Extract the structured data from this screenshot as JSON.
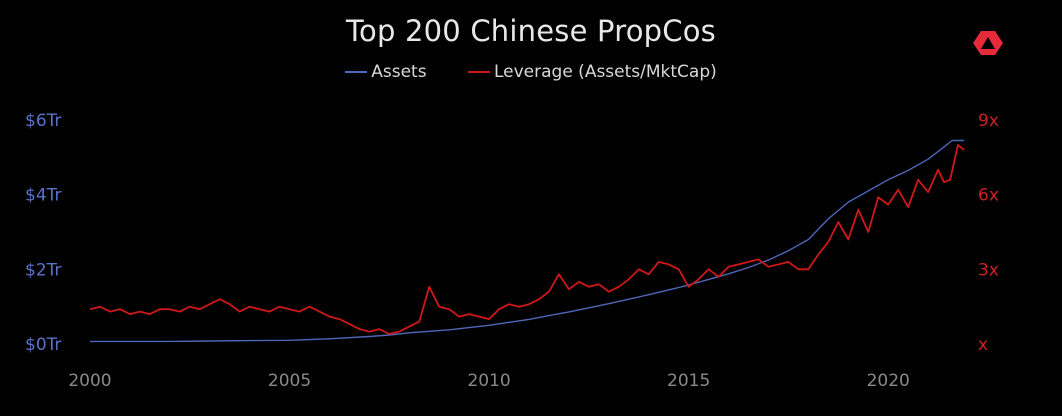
{
  "chart_data": {
    "type": "line",
    "title": "Top 200 Chinese PropCos",
    "legend_position": "top",
    "grid": false,
    "x_ticks": [
      "2000",
      "2005",
      "2010",
      "2015",
      "2020"
    ],
    "y_left_ticks": [
      "$0Tr",
      "$2Tr",
      "$4Tr",
      "$6Tr"
    ],
    "y_right_ticks": [
      "x",
      "3x",
      "6x",
      "9x"
    ],
    "y_left_range": [
      0,
      6
    ],
    "y_right_range": [
      0,
      9
    ],
    "x_range": [
      2000,
      2022.3
    ],
    "series": [
      {
        "name": "Assets",
        "axis": "left",
        "color": "#4f67b8",
        "x": [
          2000,
          2001,
          2002,
          2003,
          2004,
          2005,
          2006,
          2007,
          2007.5,
          2008,
          2008.5,
          2009,
          2009.5,
          2010,
          2010.5,
          2011,
          2011.5,
          2012,
          2012.5,
          2013,
          2013.5,
          2014,
          2014.5,
          2015,
          2015.5,
          2016,
          2016.5,
          2017,
          2017.5,
          2018,
          2018.5,
          2019,
          2019.5,
          2020,
          2020.5,
          2021,
          2021.3,
          2021.6,
          2021.9
        ],
        "values": [
          0.07,
          0.07,
          0.07,
          0.08,
          0.09,
          0.1,
          0.14,
          0.2,
          0.24,
          0.3,
          0.34,
          0.38,
          0.44,
          0.5,
          0.58,
          0.66,
          0.76,
          0.86,
          0.97,
          1.08,
          1.2,
          1.32,
          1.45,
          1.58,
          1.73,
          1.88,
          2.05,
          2.25,
          2.5,
          2.8,
          3.35,
          3.8,
          4.1,
          4.4,
          4.65,
          4.95,
          5.2,
          5.45,
          5.45
        ]
      },
      {
        "name": "Leverage (Assets/MktCap)",
        "axis": "right",
        "color": "#d01818",
        "x": [
          2000,
          2000.25,
          2000.5,
          2000.75,
          2001,
          2001.25,
          2001.5,
          2001.75,
          2002,
          2002.25,
          2002.5,
          2002.75,
          2003,
          2003.25,
          2003.5,
          2003.75,
          2004,
          2004.25,
          2004.5,
          2004.75,
          2005,
          2005.25,
          2005.5,
          2005.75,
          2006,
          2006.25,
          2006.5,
          2006.75,
          2007,
          2007.25,
          2007.5,
          2007.75,
          2008,
          2008.25,
          2008.5,
          2008.75,
          2009,
          2009.25,
          2009.5,
          2009.75,
          2010,
          2010.25,
          2010.5,
          2010.75,
          2011,
          2011.25,
          2011.5,
          2011.75,
          2012,
          2012.25,
          2012.5,
          2012.75,
          2013,
          2013.25,
          2013.5,
          2013.75,
          2014,
          2014.25,
          2014.5,
          2014.75,
          2015,
          2015.25,
          2015.5,
          2015.75,
          2016,
          2016.25,
          2016.5,
          2016.75,
          2017,
          2017.25,
          2017.5,
          2017.75,
          2018,
          2018.25,
          2018.5,
          2018.75,
          2019,
          2019.25,
          2019.5,
          2019.75,
          2020,
          2020.25,
          2020.5,
          2020.75,
          2021,
          2021.25,
          2021.4,
          2021.55,
          2021.75,
          2021.9
        ],
        "values": [
          1.4,
          1.5,
          1.3,
          1.4,
          1.2,
          1.3,
          1.2,
          1.4,
          1.4,
          1.3,
          1.5,
          1.4,
          1.6,
          1.8,
          1.6,
          1.3,
          1.5,
          1.4,
          1.3,
          1.5,
          1.4,
          1.3,
          1.5,
          1.3,
          1.1,
          1.0,
          0.8,
          0.6,
          0.5,
          0.6,
          0.4,
          0.5,
          0.7,
          0.9,
          2.3,
          1.5,
          1.4,
          1.1,
          1.2,
          1.1,
          1.0,
          1.4,
          1.6,
          1.5,
          1.6,
          1.8,
          2.1,
          2.8,
          2.2,
          2.5,
          2.3,
          2.4,
          2.1,
          2.3,
          2.6,
          3.0,
          2.8,
          3.3,
          3.2,
          3.0,
          2.3,
          2.6,
          3.0,
          2.7,
          3.1,
          3.2,
          3.3,
          3.4,
          3.1,
          3.2,
          3.3,
          3.0,
          3.0,
          3.6,
          4.1,
          4.9,
          4.2,
          5.4,
          4.5,
          5.9,
          5.6,
          6.2,
          5.5,
          6.6,
          6.1,
          7.0,
          6.5,
          6.6,
          8.0,
          7.8
        ]
      }
    ]
  }
}
